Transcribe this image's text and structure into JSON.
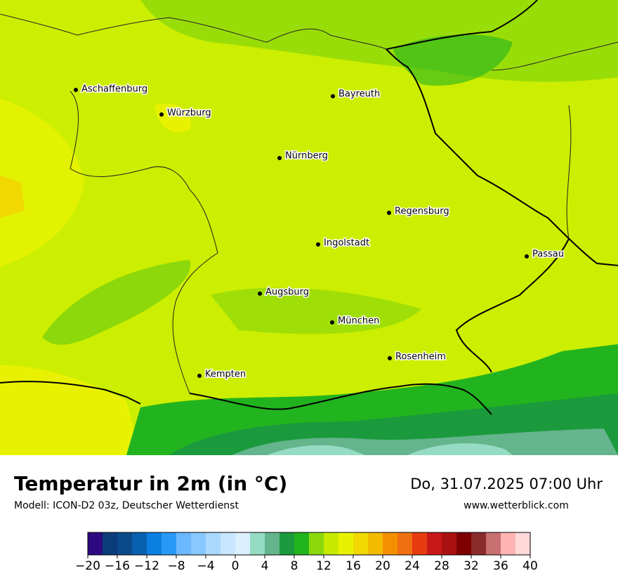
{
  "header": {
    "title": "Temperatur in 2m (in °C)",
    "subtitle": "Modell: ICON-D2 03z, Deutscher Wetterdienst",
    "datetime": "Do, 31.07.2025 07:00 Uhr",
    "website": "www.wetterblick.com"
  },
  "cities": [
    "Aschaffenburg",
    "Würzburg",
    "Bayreuth",
    "Nürnberg",
    "Regensburg",
    "Ingolstadt",
    "Passau",
    "Augsburg",
    "München",
    "Rosenheim",
    "Kempten"
  ],
  "colorbar": {
    "range": [
      -20,
      40
    ],
    "colors": [
      "#2d0a82",
      "#0a3c7a",
      "#0a4a8a",
      "#0a60b0",
      "#0a80e0",
      "#2a98f5",
      "#6ab8ff",
      "#88c8ff",
      "#aad8ff",
      "#c8e6ff",
      "#dcefff",
      "#96dcc4",
      "#64b48c",
      "#1a9a3c",
      "#22b41e",
      "#8cd80a",
      "#c8ea00",
      "#e8f200",
      "#f0d800",
      "#f4ba00",
      "#f49000",
      "#f07010",
      "#e83c10",
      "#c81818",
      "#aa1010",
      "#7e0000",
      "#8a2c2c",
      "#c87070",
      "#ffb4b4",
      "#ffd8d8"
    ],
    "ticks": [
      {
        "value": -20,
        "label": "−20"
      },
      {
        "value": -16,
        "label": "−16"
      },
      {
        "value": -12,
        "label": "−12"
      },
      {
        "value": -8,
        "label": "−8"
      },
      {
        "value": -4,
        "label": "−4"
      },
      0,
      4,
      8,
      12,
      16,
      20,
      24,
      28,
      32,
      36,
      40
    ]
  }
}
